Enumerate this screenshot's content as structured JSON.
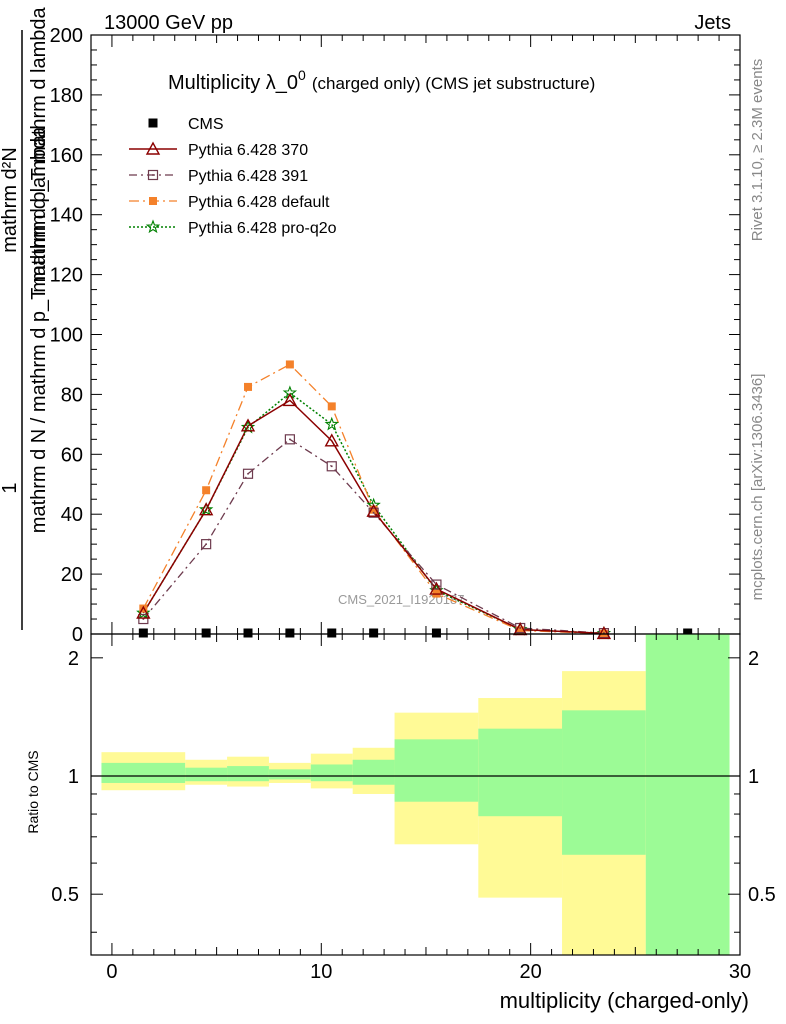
{
  "header": {
    "left": "13000 GeV pp",
    "right": "Jets"
  },
  "side_labels": {
    "rivet": "Rivet 3.1.10, ≥ 2.3M events",
    "mcplots": "mcplots.cern.ch [arXiv:1306.3436]"
  },
  "watermark": "CMS_2021_I1920187",
  "chart_data": [
    {
      "type": "line",
      "title_main": "Multiplicity λ_0",
      "title_sup": "0",
      "title_rest": "(charged only) (CMS jet substructure)",
      "ylabel_top": "1",
      "ylabel_bottom": "mathrm d N / mathrm d p_T mathrm d lambda",
      "ylabel2_top": "mathrm d²N",
      "ylabel2_bottom": "mathrm d p_T mathrm d lambda",
      "ylim": [
        0,
        200
      ],
      "yticks": [
        0,
        20,
        40,
        60,
        80,
        100,
        120,
        140,
        160,
        180,
        200
      ],
      "xlim": [
        -1,
        30
      ],
      "grid": false,
      "legend_position": "top-left",
      "series": [
        {
          "name": "CMS",
          "style": "data",
          "color": "#000000",
          "points": [
            [
              1.5,
              0.3
            ],
            [
              4.5,
              0.3
            ],
            [
              6.5,
              0.3
            ],
            [
              8.5,
              0.3
            ],
            [
              10.5,
              0.3
            ],
            [
              12.5,
              0.3
            ],
            [
              15.5,
              0.3
            ],
            [
              27.5,
              0.3
            ]
          ]
        },
        {
          "name": "Pythia 6.428 370",
          "style": "370",
          "color": "#8b0000",
          "points": [
            [
              1.5,
              7
            ],
            [
              4.5,
              41.5
            ],
            [
              6.5,
              69.5
            ],
            [
              8.5,
              78
            ],
            [
              10.5,
              64.5
            ],
            [
              12.5,
              41
            ],
            [
              15.5,
              15
            ],
            [
              19.5,
              1.5
            ],
            [
              23.5,
              0.2
            ]
          ]
        },
        {
          "name": "Pythia 6.428 391",
          "style": "391",
          "color": "#6e3b4e",
          "points": [
            [
              1.5,
              5
            ],
            [
              4.5,
              30
            ],
            [
              6.5,
              53.5
            ],
            [
              8.5,
              65
            ],
            [
              10.5,
              56
            ],
            [
              12.5,
              40.5
            ],
            [
              15.5,
              16.5
            ],
            [
              19.5,
              2
            ],
            [
              23.5,
              0.3
            ]
          ]
        },
        {
          "name": "Pythia 6.428 default",
          "style": "default",
          "color": "#f4812a",
          "points": [
            [
              1.5,
              8.5
            ],
            [
              4.5,
              48
            ],
            [
              6.5,
              82.5
            ],
            [
              8.5,
              90
            ],
            [
              10.5,
              76
            ],
            [
              12.5,
              41.5
            ],
            [
              15.5,
              13.5
            ],
            [
              19.5,
              1.2
            ],
            [
              23.5,
              0.1
            ]
          ]
        },
        {
          "name": "Pythia 6.428 pro-q2o",
          "style": "proq2o",
          "color": "#008000",
          "points": [
            [
              1.5,
              7
            ],
            [
              4.5,
              41.5
            ],
            [
              6.5,
              69
            ],
            [
              8.5,
              80.5
            ],
            [
              10.5,
              70
            ],
            [
              12.5,
              43
            ],
            [
              15.5,
              14.5
            ],
            [
              19.5,
              1.5
            ],
            [
              23.5,
              0.2
            ]
          ]
        }
      ]
    },
    {
      "type": "area",
      "ylabel": "Ratio to CMS",
      "xlabel": "multiplicity (charged-only)",
      "ylim": [
        0.35,
        2.3
      ],
      "yticks": [
        0.5,
        1,
        2
      ],
      "xlim": [
        -1,
        30
      ],
      "xticks": [
        0,
        10,
        20,
        30
      ],
      "reference_line": 1,
      "band_colors": {
        "outer": "#fffa96",
        "inner": "#9cfb96"
      },
      "bins": [
        {
          "x": [
            -0.5,
            3.5
          ],
          "yellow": [
            0.92,
            1.15
          ],
          "green": [
            0.96,
            1.08
          ]
        },
        {
          "x": [
            3.5,
            5.5
          ],
          "yellow": [
            0.95,
            1.1
          ],
          "green": [
            0.97,
            1.05
          ]
        },
        {
          "x": [
            5.5,
            7.5
          ],
          "yellow": [
            0.94,
            1.12
          ],
          "green": [
            0.97,
            1.06
          ]
        },
        {
          "x": [
            7.5,
            9.5
          ],
          "yellow": [
            0.96,
            1.08
          ],
          "green": [
            0.98,
            1.04
          ]
        },
        {
          "x": [
            9.5,
            11.5
          ],
          "yellow": [
            0.93,
            1.14
          ],
          "green": [
            0.97,
            1.07
          ]
        },
        {
          "x": [
            11.5,
            13.5
          ],
          "yellow": [
            0.9,
            1.18
          ],
          "green": [
            0.95,
            1.1
          ]
        },
        {
          "x": [
            13.5,
            17.5
          ],
          "yellow": [
            0.67,
            1.45
          ],
          "green": [
            0.86,
            1.24
          ]
        },
        {
          "x": [
            17.5,
            21.5
          ],
          "yellow": [
            0.49,
            1.58
          ],
          "green": [
            0.79,
            1.32
          ]
        },
        {
          "x": [
            21.5,
            25.5
          ],
          "yellow": [
            0.35,
            1.85
          ],
          "green": [
            0.63,
            1.47
          ]
        },
        {
          "x": [
            25.5,
            29.5
          ],
          "yellow": [
            0.35,
            2.3
          ],
          "green": [
            0.35,
            2.3
          ]
        }
      ]
    }
  ]
}
